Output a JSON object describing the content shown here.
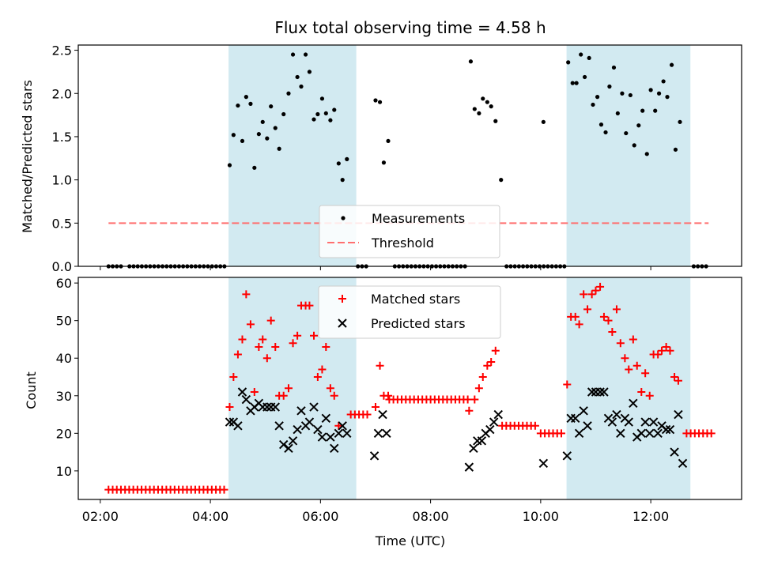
{
  "chart_data": {
    "type": "scatter",
    "title": "Flux total observing time = 4.58 h",
    "xlabel": "Time (UTC)",
    "x_unit": "hours (UTC)",
    "xlim": [
      1.6,
      13.65
    ],
    "x_ticks": [
      {
        "value": 2,
        "label": "02:00"
      },
      {
        "value": 4,
        "label": "04:00"
      },
      {
        "value": 6,
        "label": "06:00"
      },
      {
        "value": 8,
        "label": "08:00"
      },
      {
        "value": 10,
        "label": "10:00"
      },
      {
        "value": 12,
        "label": "12:00"
      }
    ],
    "shaded_intervals": [
      [
        4.33,
        6.65
      ],
      [
        10.47,
        12.72
      ]
    ],
    "shade_color": "#add8e6",
    "panels": [
      {
        "id": "ratio",
        "ylabel": "Matched/Predicted stars",
        "ylim": [
          0,
          2.56
        ],
        "y_ticks": [
          {
            "value": 0,
            "label": "0.0"
          },
          {
            "value": 0.5,
            "label": "0.5"
          },
          {
            "value": 1,
            "label": "1.0"
          },
          {
            "value": 1.5,
            "label": "1.5"
          },
          {
            "value": 2,
            "label": "2.0"
          },
          {
            "value": 2.5,
            "label": "2.5"
          }
        ],
        "threshold": {
          "value": 0.5,
          "x_range": [
            2.15,
            13.05
          ],
          "color": "#ff6f6f"
        },
        "legend": [
          {
            "label": "Measurements",
            "marker": "dot",
            "color": "#000000"
          },
          {
            "label": "Threshold",
            "marker": "dash",
            "color": "#ff6f6f"
          }
        ],
        "zero_ranges": [
          [
            2.15,
            2.4
          ],
          [
            2.53,
            4.28
          ],
          [
            6.68,
            6.85
          ],
          [
            7.35,
            8.68
          ],
          [
            9.38,
            10.43
          ],
          [
            12.78,
            13.05
          ]
        ],
        "measurements": [
          [
            4.35,
            1.17
          ],
          [
            4.42,
            1.52
          ],
          [
            4.5,
            1.86
          ],
          [
            4.58,
            1.45
          ],
          [
            4.65,
            1.96
          ],
          [
            4.73,
            1.88
          ],
          [
            4.8,
            1.14
          ],
          [
            4.88,
            1.53
          ],
          [
            4.95,
            1.67
          ],
          [
            5.03,
            1.48
          ],
          [
            5.1,
            1.85
          ],
          [
            5.18,
            1.6
          ],
          [
            5.25,
            1.36
          ],
          [
            5.33,
            1.76
          ],
          [
            5.42,
            2.0
          ],
          [
            5.5,
            2.45
          ],
          [
            5.58,
            2.19
          ],
          [
            5.65,
            2.08
          ],
          [
            5.73,
            2.45
          ],
          [
            5.8,
            2.25
          ],
          [
            5.88,
            1.7
          ],
          [
            5.95,
            1.76
          ],
          [
            6.03,
            1.94
          ],
          [
            6.1,
            1.77
          ],
          [
            6.18,
            1.69
          ],
          [
            6.25,
            1.81
          ],
          [
            6.33,
            1.19
          ],
          [
            6.4,
            1.0
          ],
          [
            6.48,
            1.24
          ],
          [
            7.0,
            1.92
          ],
          [
            7.08,
            1.9
          ],
          [
            7.15,
            1.2
          ],
          [
            7.23,
            1.45
          ],
          [
            8.73,
            2.37
          ],
          [
            8.8,
            1.82
          ],
          [
            8.88,
            1.77
          ],
          [
            8.95,
            1.94
          ],
          [
            9.03,
            1.9
          ],
          [
            9.1,
            1.85
          ],
          [
            9.18,
            1.68
          ],
          [
            9.28,
            1.0
          ],
          [
            10.05,
            1.67
          ],
          [
            10.5,
            2.36
          ],
          [
            10.58,
            2.12
          ],
          [
            10.65,
            2.12
          ],
          [
            10.73,
            2.45
          ],
          [
            10.8,
            2.19
          ],
          [
            10.88,
            2.41
          ],
          [
            10.95,
            1.87
          ],
          [
            11.03,
            1.96
          ],
          [
            11.1,
            1.64
          ],
          [
            11.18,
            1.55
          ],
          [
            11.25,
            2.08
          ],
          [
            11.33,
            2.3
          ],
          [
            11.4,
            1.77
          ],
          [
            11.48,
            2.0
          ],
          [
            11.55,
            1.54
          ],
          [
            11.63,
            1.98
          ],
          [
            11.7,
            1.4
          ],
          [
            11.78,
            1.63
          ],
          [
            11.85,
            1.8
          ],
          [
            11.93,
            1.3
          ],
          [
            12.0,
            2.04
          ],
          [
            12.08,
            1.8
          ],
          [
            12.15,
            2.0
          ],
          [
            12.23,
            2.14
          ],
          [
            12.3,
            1.96
          ],
          [
            12.38,
            2.33
          ],
          [
            12.45,
            1.35
          ],
          [
            12.53,
            1.67
          ]
        ]
      },
      {
        "id": "count",
        "ylabel": "Count",
        "ylim": [
          2.4,
          61.5
        ],
        "y_ticks": [
          {
            "value": 10,
            "label": "10"
          },
          {
            "value": 20,
            "label": "20"
          },
          {
            "value": 30,
            "label": "30"
          },
          {
            "value": 40,
            "label": "40"
          },
          {
            "value": 50,
            "label": "50"
          },
          {
            "value": 60,
            "label": "60"
          }
        ],
        "legend": [
          {
            "label": "Matched stars",
            "marker": "plus",
            "color": "#ff0000"
          },
          {
            "label": "Predicted stars",
            "marker": "x",
            "color": "#000000"
          }
        ],
        "matched_constant_runs": [
          {
            "x_range": [
              2.15,
              4.3
            ],
            "value": 5
          },
          {
            "x_range": [
              6.55,
              6.9
            ],
            "value": 25
          },
          {
            "x_range": [
              7.25,
              8.7
            ],
            "value": 29
          },
          {
            "x_range": [
              9.3,
              9.95
            ],
            "value": 22
          },
          {
            "x_range": [
              10.0,
              10.43
            ],
            "value": 20
          },
          {
            "x_range": [
              12.65,
              13.1
            ],
            "value": 20
          }
        ],
        "matched": [
          [
            4.35,
            27
          ],
          [
            4.42,
            35
          ],
          [
            4.5,
            41
          ],
          [
            4.58,
            45
          ],
          [
            4.65,
            57
          ],
          [
            4.73,
            49
          ],
          [
            4.8,
            31
          ],
          [
            4.88,
            43
          ],
          [
            4.95,
            45
          ],
          [
            5.03,
            40
          ],
          [
            5.1,
            50
          ],
          [
            5.18,
            43
          ],
          [
            5.25,
            30
          ],
          [
            5.33,
            30
          ],
          [
            5.42,
            32
          ],
          [
            5.5,
            44
          ],
          [
            5.58,
            46
          ],
          [
            5.65,
            54
          ],
          [
            5.73,
            54
          ],
          [
            5.8,
            54
          ],
          [
            5.88,
            46
          ],
          [
            5.95,
            35
          ],
          [
            6.03,
            37
          ],
          [
            6.1,
            43
          ],
          [
            6.18,
            32
          ],
          [
            6.25,
            30
          ],
          [
            6.33,
            22
          ],
          [
            7.0,
            27
          ],
          [
            7.08,
            38
          ],
          [
            7.15,
            30
          ],
          [
            7.23,
            30
          ],
          [
            8.7,
            26
          ],
          [
            8.8,
            29
          ],
          [
            8.88,
            32
          ],
          [
            8.95,
            35
          ],
          [
            9.03,
            38
          ],
          [
            9.1,
            39
          ],
          [
            9.18,
            42
          ],
          [
            10.48,
            33
          ],
          [
            10.55,
            51
          ],
          [
            10.63,
            51
          ],
          [
            10.7,
            49
          ],
          [
            10.78,
            57
          ],
          [
            10.85,
            53
          ],
          [
            10.93,
            57
          ],
          [
            11.0,
            58
          ],
          [
            11.08,
            59
          ],
          [
            11.15,
            51
          ],
          [
            11.23,
            50
          ],
          [
            11.3,
            47
          ],
          [
            11.38,
            53
          ],
          [
            11.45,
            44
          ],
          [
            11.53,
            40
          ],
          [
            11.6,
            37
          ],
          [
            11.68,
            45
          ],
          [
            11.75,
            38
          ],
          [
            11.83,
            31
          ],
          [
            11.9,
            36
          ],
          [
            11.98,
            30
          ],
          [
            12.05,
            41
          ],
          [
            12.13,
            41
          ],
          [
            12.2,
            42
          ],
          [
            12.28,
            43
          ],
          [
            12.35,
            42
          ],
          [
            12.43,
            35
          ],
          [
            12.5,
            34
          ]
        ],
        "predicted": [
          [
            4.35,
            23
          ],
          [
            4.42,
            23
          ],
          [
            4.5,
            22
          ],
          [
            4.58,
            31
          ],
          [
            4.65,
            29
          ],
          [
            4.73,
            26
          ],
          [
            4.8,
            27
          ],
          [
            4.88,
            28
          ],
          [
            4.95,
            27
          ],
          [
            5.03,
            27
          ],
          [
            5.1,
            27
          ],
          [
            5.18,
            27
          ],
          [
            5.25,
            22
          ],
          [
            5.33,
            17
          ],
          [
            5.42,
            16
          ],
          [
            5.5,
            18
          ],
          [
            5.58,
            21
          ],
          [
            5.65,
            26
          ],
          [
            5.73,
            22
          ],
          [
            5.8,
            23
          ],
          [
            5.88,
            27
          ],
          [
            5.95,
            21
          ],
          [
            6.03,
            19
          ],
          [
            6.1,
            24
          ],
          [
            6.18,
            19
          ],
          [
            6.25,
            16
          ],
          [
            6.33,
            20
          ],
          [
            6.4,
            22
          ],
          [
            6.48,
            20
          ],
          [
            6.98,
            14
          ],
          [
            7.05,
            20
          ],
          [
            7.13,
            25
          ],
          [
            7.2,
            20
          ],
          [
            8.7,
            11
          ],
          [
            8.78,
            16
          ],
          [
            8.85,
            18
          ],
          [
            8.93,
            18
          ],
          [
            9.0,
            20
          ],
          [
            9.08,
            21
          ],
          [
            9.15,
            23
          ],
          [
            9.23,
            25
          ],
          [
            10.05,
            12
          ],
          [
            10.48,
            14
          ],
          [
            10.55,
            24
          ],
          [
            10.63,
            24
          ],
          [
            10.7,
            20
          ],
          [
            10.78,
            26
          ],
          [
            10.85,
            22
          ],
          [
            10.93,
            31
          ],
          [
            11.0,
            31
          ],
          [
            11.08,
            31
          ],
          [
            11.15,
            31
          ],
          [
            11.23,
            24
          ],
          [
            11.3,
            23
          ],
          [
            11.38,
            25
          ],
          [
            11.45,
            20
          ],
          [
            11.53,
            24
          ],
          [
            11.6,
            23
          ],
          [
            11.68,
            28
          ],
          [
            11.75,
            19
          ],
          [
            11.83,
            20
          ],
          [
            11.9,
            23
          ],
          [
            11.98,
            20
          ],
          [
            12.05,
            23
          ],
          [
            12.13,
            20
          ],
          [
            12.2,
            22
          ],
          [
            12.28,
            21
          ],
          [
            12.35,
            21
          ],
          [
            12.43,
            15
          ],
          [
            12.5,
            25
          ],
          [
            12.58,
            12
          ]
        ]
      }
    ]
  }
}
